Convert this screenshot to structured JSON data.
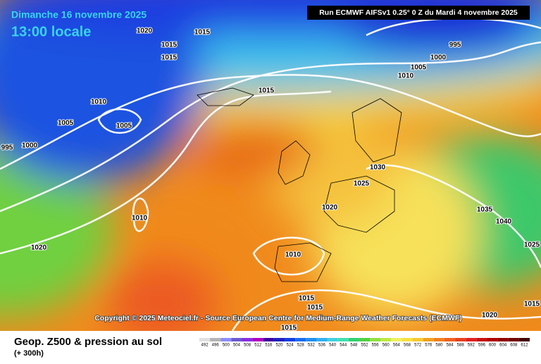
{
  "header": {
    "date": "Dimanche 16 novembre 2025",
    "time": "13:00 locale",
    "run": "Run ECMWF AIFSv1 0.25° 0 Z du Mardi 4 novembre 2025"
  },
  "copyright": "Copyright © 2025 Meteociel.fr - Source European Centre for Medium-Range Weather Forecasts (ECMWF)",
  "footer": {
    "title": "Geop. Z500 & pression au sol",
    "subtitle": "(+ 300h)"
  },
  "legend": {
    "labels": [
      "492",
      "496",
      "500",
      "504",
      "508",
      "512",
      "516",
      "520",
      "524",
      "528",
      "532",
      "536",
      "540",
      "544",
      "548",
      "552",
      "556",
      "560",
      "564",
      "568",
      "572",
      "576",
      "580",
      "584",
      "588",
      "592",
      "596",
      "600",
      "604",
      "608",
      "612"
    ]
  },
  "isobar_labels": [
    "1020",
    "1015",
    "1015",
    "1015",
    "1015",
    "1010",
    "1005",
    "1005",
    "995",
    "1000",
    "995",
    "1000",
    "1005",
    "1010",
    "1030",
    "1025",
    "1020",
    "1035",
    "1040",
    "1025",
    "1010",
    "1020",
    "1010",
    "1015",
    "1015",
    "1020",
    "1015",
    "1015"
  ]
}
